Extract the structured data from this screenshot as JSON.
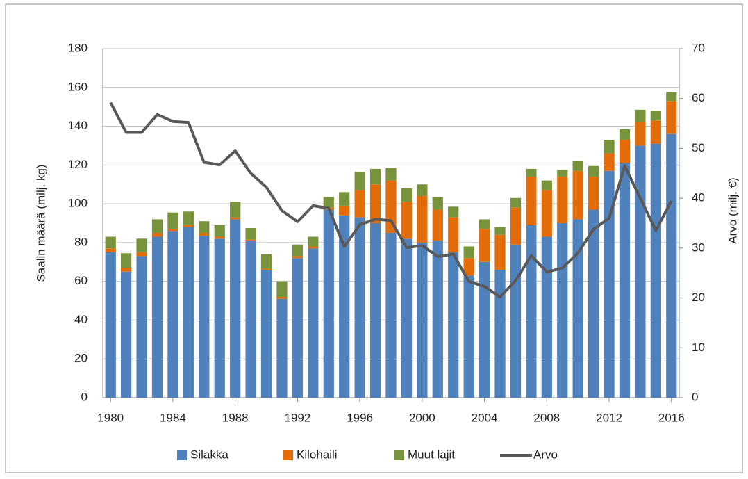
{
  "chart_data": {
    "type": "bar-line",
    "y_label": "Saalin määrä (milj. kg)",
    "y2_label": "Arvo (milj. €)",
    "categories": [
      "1980",
      null,
      null,
      null,
      "1984",
      null,
      null,
      null,
      "1988",
      null,
      null,
      null,
      "1992",
      null,
      null,
      null,
      "1996",
      null,
      null,
      null,
      "2000",
      null,
      null,
      null,
      "2004",
      null,
      null,
      null,
      "2008",
      null,
      null,
      null,
      "2012",
      null,
      null,
      null,
      "2016"
    ],
    "series": [
      {
        "name": "Silakka",
        "color": "#4f81bd",
        "kind": "bar",
        "values": [
          75,
          65,
          73,
          83,
          86,
          88,
          83.5,
          82,
          92,
          81,
          66,
          51,
          72,
          77,
          97,
          94,
          93,
          90,
          85,
          82,
          80,
          81,
          75,
          63,
          70,
          66,
          79,
          89,
          83,
          90,
          92,
          97,
          117,
          121,
          130,
          131,
          136
        ]
      },
      {
        "name": "Kilohaili",
        "color": "#e36c0a",
        "kind": "bar",
        "values": [
          2,
          2,
          2,
          2,
          1,
          1,
          1.5,
          1,
          1,
          0.5,
          0.5,
          1,
          1,
          1,
          1,
          5,
          14,
          20,
          27,
          19,
          24,
          16,
          18,
          9,
          17,
          18,
          19,
          25,
          24,
          24,
          25,
          17,
          9,
          12,
          12,
          12,
          17
        ]
      },
      {
        "name": "Muut lajit",
        "color": "#77933c",
        "kind": "bar",
        "values": [
          6,
          7.5,
          7,
          7,
          8.5,
          7,
          6,
          6,
          8,
          6,
          7.5,
          8,
          6,
          5,
          5.5,
          7,
          9.5,
          8,
          6.5,
          7,
          6,
          6.5,
          5.5,
          6,
          5,
          4,
          5,
          4,
          5,
          3.5,
          5,
          5.5,
          7,
          5.5,
          6.5,
          5,
          4.5
        ]
      },
      {
        "name": "Arvo",
        "color": "#595959",
        "kind": "line",
        "axis": "y2",
        "values": [
          59.2,
          53.2,
          53.2,
          56.8,
          55.4,
          55.2,
          47.2,
          46.7,
          49.5,
          45,
          42.2,
          37.5,
          35.3,
          38.5,
          38,
          30.3,
          34.7,
          35.8,
          35.5,
          30.1,
          30.5,
          28.3,
          28.8,
          23.3,
          22.3,
          20.2,
          23.5,
          28.5,
          25.2,
          26,
          29,
          33.8,
          36,
          46.5,
          40,
          33.5,
          39.5
        ]
      }
    ],
    "ylim": [
      0,
      180
    ],
    "yticks": [
      0,
      20,
      40,
      60,
      80,
      100,
      120,
      140,
      160,
      180
    ],
    "y2lim": [
      0,
      70
    ],
    "y2ticks": [
      0,
      10,
      20,
      30,
      40,
      50,
      60,
      70
    ],
    "grid": true,
    "legend": "bottom"
  }
}
